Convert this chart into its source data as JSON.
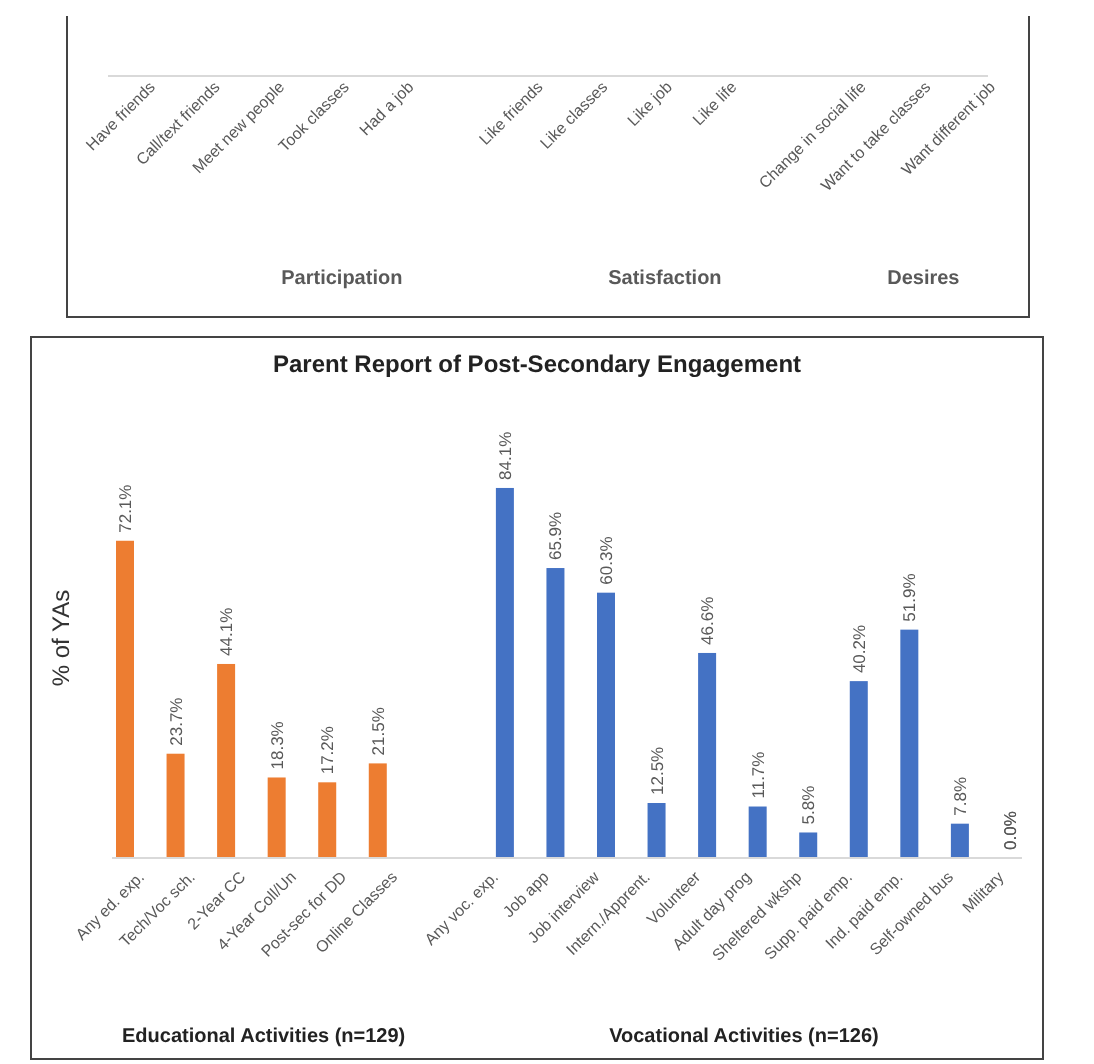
{
  "chart_data": [
    {
      "type": "other",
      "categories": [
        "Have friends",
        "Call/text friends",
        "Meet new people",
        "Took classes",
        "Had a job",
        null,
        "Like friends",
        "Like classes",
        "Like job",
        "Like life",
        null,
        "Change in social life",
        "Want to take classes",
        "Want different job"
      ],
      "annotations": [
        {
          "text": "Participation",
          "x": "Took classes"
        },
        {
          "text": "Satisfaction",
          "x": "Like job"
        },
        {
          "text": "Desires",
          "x": "Want to take classes"
        }
      ]
    },
    {
      "type": "bar",
      "title": "Parent Report of Post-Secondary Engagement",
      "ylabel": "% of YAs",
      "categories": [
        "Any ed. exp.",
        "Tech/Voc sch.",
        "2-Year CC",
        "4-Year Coll/Un",
        "Post-sec for DD",
        "Online Classes",
        null,
        "Any voc. exp.",
        "Job app",
        "Job interview",
        "Intern./Apprent.",
        "Volunteer",
        "Adult day prog",
        "Sheltered wkshp",
        "Supp. paid emp.",
        "Ind. paid emp.",
        "Self-owned bus",
        "Military"
      ],
      "series": [
        {
          "color": "#ed7d31",
          "values": [
            72.1,
            23.7,
            44.1,
            18.3,
            17.2,
            21.5,
            null,
            null,
            null,
            null,
            null,
            null,
            null,
            null,
            null,
            null,
            null,
            null
          ],
          "value_labels": [
            "72.1%",
            "23.7%",
            "44.1%",
            "18.3%",
            "17.2%",
            "21.5%",
            null,
            null,
            null,
            null,
            null,
            null,
            null,
            null,
            null,
            null,
            null,
            null
          ]
        },
        {
          "color": "#4472c4",
          "values": [
            null,
            null,
            null,
            null,
            null,
            null,
            null,
            84.1,
            65.9,
            60.3,
            12.5,
            46.6,
            11.7,
            5.8,
            40.2,
            51.9,
            7.8,
            0.0
          ],
          "value_labels": [
            null,
            null,
            null,
            null,
            null,
            null,
            null,
            "84.1%",
            "65.9%",
            "60.3%",
            "12.5%",
            "46.6%",
            "11.7%",
            "5.8%",
            "40.2%",
            "51.9%",
            "7.8%",
            "0.0%"
          ]
        }
      ],
      "tick_labels": "x",
      "annotations": [
        "Educational Activities (n=129)",
        "Vocational Activities (n=126)"
      ]
    }
  ]
}
